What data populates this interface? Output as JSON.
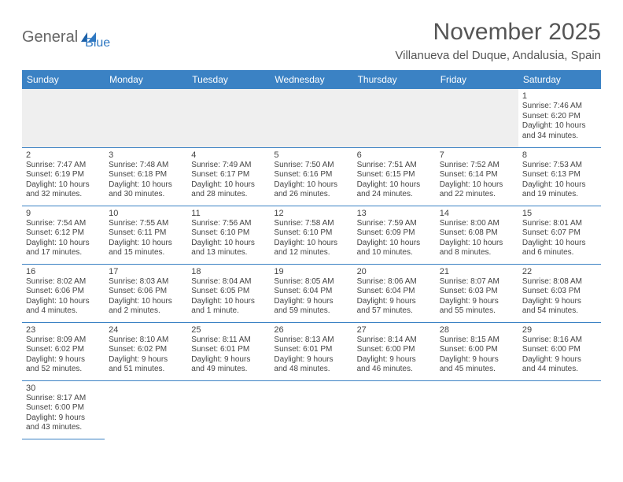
{
  "brand": {
    "general": "General",
    "blue": "Blue"
  },
  "title": "November 2025",
  "location": "Villanueva del Duque, Andalusia, Spain",
  "colors": {
    "header_bg": "#3b82c4",
    "header_fg": "#ffffff",
    "rule": "#3b82c4",
    "empty_bg": "#efefef"
  },
  "day_headers": [
    "Sunday",
    "Monday",
    "Tuesday",
    "Wednesday",
    "Thursday",
    "Friday",
    "Saturday"
  ],
  "weeks": [
    [
      null,
      null,
      null,
      null,
      null,
      null,
      {
        "n": "1",
        "sr": "Sunrise: 7:46 AM",
        "ss": "Sunset: 6:20 PM",
        "dl1": "Daylight: 10 hours",
        "dl2": "and 34 minutes."
      }
    ],
    [
      {
        "n": "2",
        "sr": "Sunrise: 7:47 AM",
        "ss": "Sunset: 6:19 PM",
        "dl1": "Daylight: 10 hours",
        "dl2": "and 32 minutes."
      },
      {
        "n": "3",
        "sr": "Sunrise: 7:48 AM",
        "ss": "Sunset: 6:18 PM",
        "dl1": "Daylight: 10 hours",
        "dl2": "and 30 minutes."
      },
      {
        "n": "4",
        "sr": "Sunrise: 7:49 AM",
        "ss": "Sunset: 6:17 PM",
        "dl1": "Daylight: 10 hours",
        "dl2": "and 28 minutes."
      },
      {
        "n": "5",
        "sr": "Sunrise: 7:50 AM",
        "ss": "Sunset: 6:16 PM",
        "dl1": "Daylight: 10 hours",
        "dl2": "and 26 minutes."
      },
      {
        "n": "6",
        "sr": "Sunrise: 7:51 AM",
        "ss": "Sunset: 6:15 PM",
        "dl1": "Daylight: 10 hours",
        "dl2": "and 24 minutes."
      },
      {
        "n": "7",
        "sr": "Sunrise: 7:52 AM",
        "ss": "Sunset: 6:14 PM",
        "dl1": "Daylight: 10 hours",
        "dl2": "and 22 minutes."
      },
      {
        "n": "8",
        "sr": "Sunrise: 7:53 AM",
        "ss": "Sunset: 6:13 PM",
        "dl1": "Daylight: 10 hours",
        "dl2": "and 19 minutes."
      }
    ],
    [
      {
        "n": "9",
        "sr": "Sunrise: 7:54 AM",
        "ss": "Sunset: 6:12 PM",
        "dl1": "Daylight: 10 hours",
        "dl2": "and 17 minutes."
      },
      {
        "n": "10",
        "sr": "Sunrise: 7:55 AM",
        "ss": "Sunset: 6:11 PM",
        "dl1": "Daylight: 10 hours",
        "dl2": "and 15 minutes."
      },
      {
        "n": "11",
        "sr": "Sunrise: 7:56 AM",
        "ss": "Sunset: 6:10 PM",
        "dl1": "Daylight: 10 hours",
        "dl2": "and 13 minutes."
      },
      {
        "n": "12",
        "sr": "Sunrise: 7:58 AM",
        "ss": "Sunset: 6:10 PM",
        "dl1": "Daylight: 10 hours",
        "dl2": "and 12 minutes."
      },
      {
        "n": "13",
        "sr": "Sunrise: 7:59 AM",
        "ss": "Sunset: 6:09 PM",
        "dl1": "Daylight: 10 hours",
        "dl2": "and 10 minutes."
      },
      {
        "n": "14",
        "sr": "Sunrise: 8:00 AM",
        "ss": "Sunset: 6:08 PM",
        "dl1": "Daylight: 10 hours",
        "dl2": "and 8 minutes."
      },
      {
        "n": "15",
        "sr": "Sunrise: 8:01 AM",
        "ss": "Sunset: 6:07 PM",
        "dl1": "Daylight: 10 hours",
        "dl2": "and 6 minutes."
      }
    ],
    [
      {
        "n": "16",
        "sr": "Sunrise: 8:02 AM",
        "ss": "Sunset: 6:06 PM",
        "dl1": "Daylight: 10 hours",
        "dl2": "and 4 minutes."
      },
      {
        "n": "17",
        "sr": "Sunrise: 8:03 AM",
        "ss": "Sunset: 6:06 PM",
        "dl1": "Daylight: 10 hours",
        "dl2": "and 2 minutes."
      },
      {
        "n": "18",
        "sr": "Sunrise: 8:04 AM",
        "ss": "Sunset: 6:05 PM",
        "dl1": "Daylight: 10 hours",
        "dl2": "and 1 minute."
      },
      {
        "n": "19",
        "sr": "Sunrise: 8:05 AM",
        "ss": "Sunset: 6:04 PM",
        "dl1": "Daylight: 9 hours",
        "dl2": "and 59 minutes."
      },
      {
        "n": "20",
        "sr": "Sunrise: 8:06 AM",
        "ss": "Sunset: 6:04 PM",
        "dl1": "Daylight: 9 hours",
        "dl2": "and 57 minutes."
      },
      {
        "n": "21",
        "sr": "Sunrise: 8:07 AM",
        "ss": "Sunset: 6:03 PM",
        "dl1": "Daylight: 9 hours",
        "dl2": "and 55 minutes."
      },
      {
        "n": "22",
        "sr": "Sunrise: 8:08 AM",
        "ss": "Sunset: 6:03 PM",
        "dl1": "Daylight: 9 hours",
        "dl2": "and 54 minutes."
      }
    ],
    [
      {
        "n": "23",
        "sr": "Sunrise: 8:09 AM",
        "ss": "Sunset: 6:02 PM",
        "dl1": "Daylight: 9 hours",
        "dl2": "and 52 minutes."
      },
      {
        "n": "24",
        "sr": "Sunrise: 8:10 AM",
        "ss": "Sunset: 6:02 PM",
        "dl1": "Daylight: 9 hours",
        "dl2": "and 51 minutes."
      },
      {
        "n": "25",
        "sr": "Sunrise: 8:11 AM",
        "ss": "Sunset: 6:01 PM",
        "dl1": "Daylight: 9 hours",
        "dl2": "and 49 minutes."
      },
      {
        "n": "26",
        "sr": "Sunrise: 8:13 AM",
        "ss": "Sunset: 6:01 PM",
        "dl1": "Daylight: 9 hours",
        "dl2": "and 48 minutes."
      },
      {
        "n": "27",
        "sr": "Sunrise: 8:14 AM",
        "ss": "Sunset: 6:00 PM",
        "dl1": "Daylight: 9 hours",
        "dl2": "and 46 minutes."
      },
      {
        "n": "28",
        "sr": "Sunrise: 8:15 AM",
        "ss": "Sunset: 6:00 PM",
        "dl1": "Daylight: 9 hours",
        "dl2": "and 45 minutes."
      },
      {
        "n": "29",
        "sr": "Sunrise: 8:16 AM",
        "ss": "Sunset: 6:00 PM",
        "dl1": "Daylight: 9 hours",
        "dl2": "and 44 minutes."
      }
    ],
    [
      {
        "n": "30",
        "sr": "Sunrise: 8:17 AM",
        "ss": "Sunset: 6:00 PM",
        "dl1": "Daylight: 9 hours",
        "dl2": "and 43 minutes."
      },
      null,
      null,
      null,
      null,
      null,
      null
    ]
  ]
}
